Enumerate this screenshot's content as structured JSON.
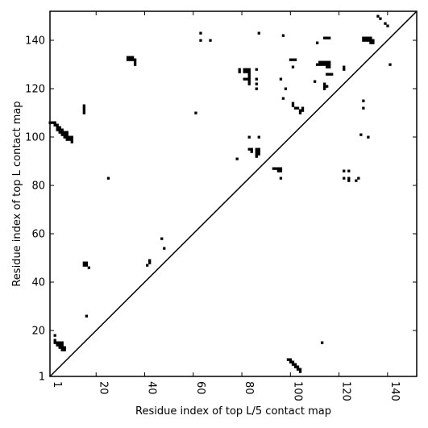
{
  "chart_data": {
    "type": "heatmap",
    "title": "",
    "xlabel": "Residue index of top L/5 contact map",
    "ylabel": "Residue index of top L contact map",
    "xlim": [
      1,
      152
    ],
    "ylim": [
      1,
      152
    ],
    "x_ticks": [
      1,
      20,
      40,
      60,
      80,
      100,
      120,
      140
    ],
    "y_ticks": [
      1,
      20,
      40,
      60,
      80,
      100,
      120,
      140
    ],
    "x_tick_rotation_deg": -90,
    "grid": false,
    "diagonal": true,
    "cell_color": "#000000",
    "line_color": "#000000",
    "upper_contacts": [
      [
        1,
        106
      ],
      [
        2,
        106
      ],
      [
        3,
        106
      ],
      [
        3,
        105
      ],
      [
        4,
        105
      ],
      [
        4,
        104
      ],
      [
        4,
        103
      ],
      [
        5,
        104
      ],
      [
        5,
        103
      ],
      [
        5,
        102
      ],
      [
        6,
        103
      ],
      [
        6,
        102
      ],
      [
        6,
        101
      ],
      [
        7,
        102
      ],
      [
        7,
        101
      ],
      [
        7,
        100
      ],
      [
        8,
        102
      ],
      [
        8,
        101
      ],
      [
        8,
        100
      ],
      [
        8,
        99
      ],
      [
        9,
        100
      ],
      [
        9,
        99
      ],
      [
        10,
        100
      ],
      [
        10,
        99
      ],
      [
        10,
        98
      ],
      [
        15,
        113
      ],
      [
        15,
        112
      ],
      [
        15,
        111
      ],
      [
        15,
        110
      ],
      [
        15,
        48
      ],
      [
        15,
        47
      ],
      [
        16,
        48
      ],
      [
        16,
        47
      ],
      [
        17,
        46
      ],
      [
        25,
        83
      ],
      [
        33,
        133
      ],
      [
        33,
        132
      ],
      [
        34,
        133
      ],
      [
        34,
        132
      ],
      [
        35,
        133
      ],
      [
        35,
        132
      ],
      [
        36,
        132
      ],
      [
        36,
        131
      ],
      [
        36,
        130
      ],
      [
        41,
        47
      ],
      [
        42,
        49
      ],
      [
        42,
        48
      ],
      [
        47,
        58
      ],
      [
        48,
        54
      ],
      [
        61,
        110
      ],
      [
        63,
        143
      ],
      [
        63,
        140
      ],
      [
        67,
        140
      ],
      [
        79,
        128
      ],
      [
        79,
        127
      ],
      [
        81,
        128
      ],
      [
        81,
        127
      ],
      [
        81,
        124
      ],
      [
        82,
        128
      ],
      [
        82,
        127
      ],
      [
        82,
        124
      ],
      [
        83,
        128
      ],
      [
        83,
        127
      ],
      [
        83,
        126
      ],
      [
        83,
        125
      ],
      [
        83,
        124
      ],
      [
        83,
        123
      ],
      [
        83,
        122
      ],
      [
        86,
        128
      ],
      [
        86,
        124
      ],
      [
        86,
        122
      ],
      [
        86,
        120
      ],
      [
        87,
        143
      ],
      [
        97,
        142
      ],
      [
        96,
        124
      ],
      [
        98,
        120
      ],
      [
        97,
        116
      ],
      [
        100,
        132
      ],
      [
        101,
        132
      ],
      [
        102,
        132
      ],
      [
        101,
        129
      ],
      [
        101,
        114
      ],
      [
        101,
        113
      ],
      [
        102,
        112
      ],
      [
        103,
        112
      ],
      [
        104,
        111
      ],
      [
        104,
        110
      ],
      [
        105,
        112
      ],
      [
        105,
        111
      ],
      [
        110,
        123
      ],
      [
        111,
        139
      ],
      [
        111,
        130
      ],
      [
        112,
        131
      ],
      [
        112,
        130
      ],
      [
        113,
        131
      ],
      [
        113,
        130
      ],
      [
        114,
        131
      ],
      [
        114,
        130
      ],
      [
        115,
        131
      ],
      [
        115,
        130
      ],
      [
        115,
        129
      ],
      [
        116,
        131
      ],
      [
        116,
        130
      ],
      [
        116,
        129
      ],
      [
        114,
        141
      ],
      [
        115,
        141
      ],
      [
        116,
        141
      ],
      [
        115,
        126
      ],
      [
        116,
        126
      ],
      [
        117,
        126
      ],
      [
        114,
        122
      ],
      [
        114,
        121
      ],
      [
        114,
        120
      ],
      [
        115,
        121
      ],
      [
        122,
        129
      ],
      [
        122,
        128
      ],
      [
        130,
        141
      ],
      [
        130,
        140
      ],
      [
        131,
        141
      ],
      [
        131,
        140
      ],
      [
        132,
        141
      ],
      [
        132,
        140
      ],
      [
        133,
        141
      ],
      [
        133,
        140
      ],
      [
        133,
        139
      ],
      [
        134,
        140
      ],
      [
        134,
        139
      ],
      [
        136,
        150
      ],
      [
        137,
        149
      ],
      [
        139,
        147
      ],
      [
        140,
        146
      ],
      [
        141,
        130
      ],
      [
        130,
        115
      ],
      [
        130,
        112
      ],
      [
        129,
        101
      ],
      [
        132,
        100
      ],
      [
        78,
        91
      ],
      [
        83,
        100
      ],
      [
        83,
        95
      ],
      [
        84,
        95
      ],
      [
        84,
        94
      ],
      [
        87,
        100
      ],
      [
        86,
        95
      ],
      [
        86,
        94
      ],
      [
        86,
        93
      ],
      [
        86,
        92
      ],
      [
        87,
        95
      ],
      [
        87,
        94
      ],
      [
        87,
        93
      ],
      [
        93,
        87
      ],
      [
        94,
        87
      ],
      [
        95,
        87
      ],
      [
        95,
        86
      ],
      [
        96,
        87
      ],
      [
        96,
        86
      ],
      [
        96,
        83
      ],
      [
        122,
        86
      ],
      [
        122,
        83
      ],
      [
        124,
        86
      ],
      [
        124,
        83
      ],
      [
        124,
        82
      ],
      [
        127,
        82
      ],
      [
        128,
        83
      ]
    ],
    "lower_contacts": [
      [
        3,
        18
      ],
      [
        3,
        16
      ],
      [
        3,
        15
      ],
      [
        4,
        15
      ],
      [
        4,
        14
      ],
      [
        5,
        15
      ],
      [
        5,
        14
      ],
      [
        5,
        13
      ],
      [
        6,
        15
      ],
      [
        6,
        14
      ],
      [
        6,
        13
      ],
      [
        6,
        12
      ],
      [
        7,
        13
      ],
      [
        7,
        12
      ],
      [
        16,
        26
      ],
      [
        99,
        8
      ],
      [
        100,
        8
      ],
      [
        100,
        7
      ],
      [
        101,
        7
      ],
      [
        101,
        6
      ],
      [
        102,
        6
      ],
      [
        102,
        5
      ],
      [
        103,
        5
      ],
      [
        103,
        4
      ],
      [
        104,
        4
      ],
      [
        104,
        3
      ],
      [
        113,
        15
      ]
    ]
  }
}
